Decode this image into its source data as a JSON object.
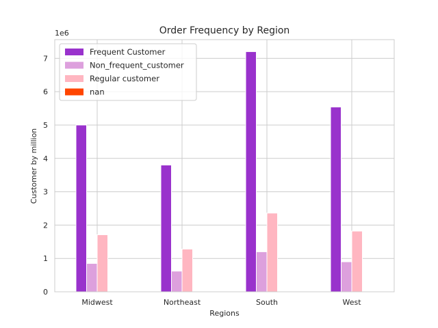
{
  "chart_data": {
    "type": "bar",
    "title": "Order Frequency by Region",
    "xlabel": "Regions",
    "ylabel": "Customer by million",
    "y_offset_label": "1e6",
    "categories": [
      "Midwest",
      "Northeast",
      "South",
      "West"
    ],
    "series": [
      {
        "name": "Frequent Customer",
        "color": "#9932CC",
        "values": [
          5000000,
          3800000,
          7200000,
          5540000
        ]
      },
      {
        "name": "Non_frequent_customer",
        "color": "#DDA0DD",
        "values": [
          850000,
          620000,
          1200000,
          900000
        ]
      },
      {
        "name": "Regular customer",
        "color": "#FFB6C1",
        "values": [
          1710000,
          1280000,
          2360000,
          1820000
        ]
      },
      {
        "name": "nan",
        "color": "#FF4500",
        "values": [
          0,
          0,
          0,
          0
        ]
      }
    ],
    "ylim": [
      0,
      7560000
    ],
    "yticks": [
      0,
      1000000,
      2000000,
      3000000,
      4000000,
      5000000,
      6000000,
      7000000
    ],
    "ytick_labels": [
      "0",
      "1",
      "2",
      "3",
      "4",
      "5",
      "6",
      "7"
    ],
    "grid": true,
    "legend_position": "top-left"
  }
}
